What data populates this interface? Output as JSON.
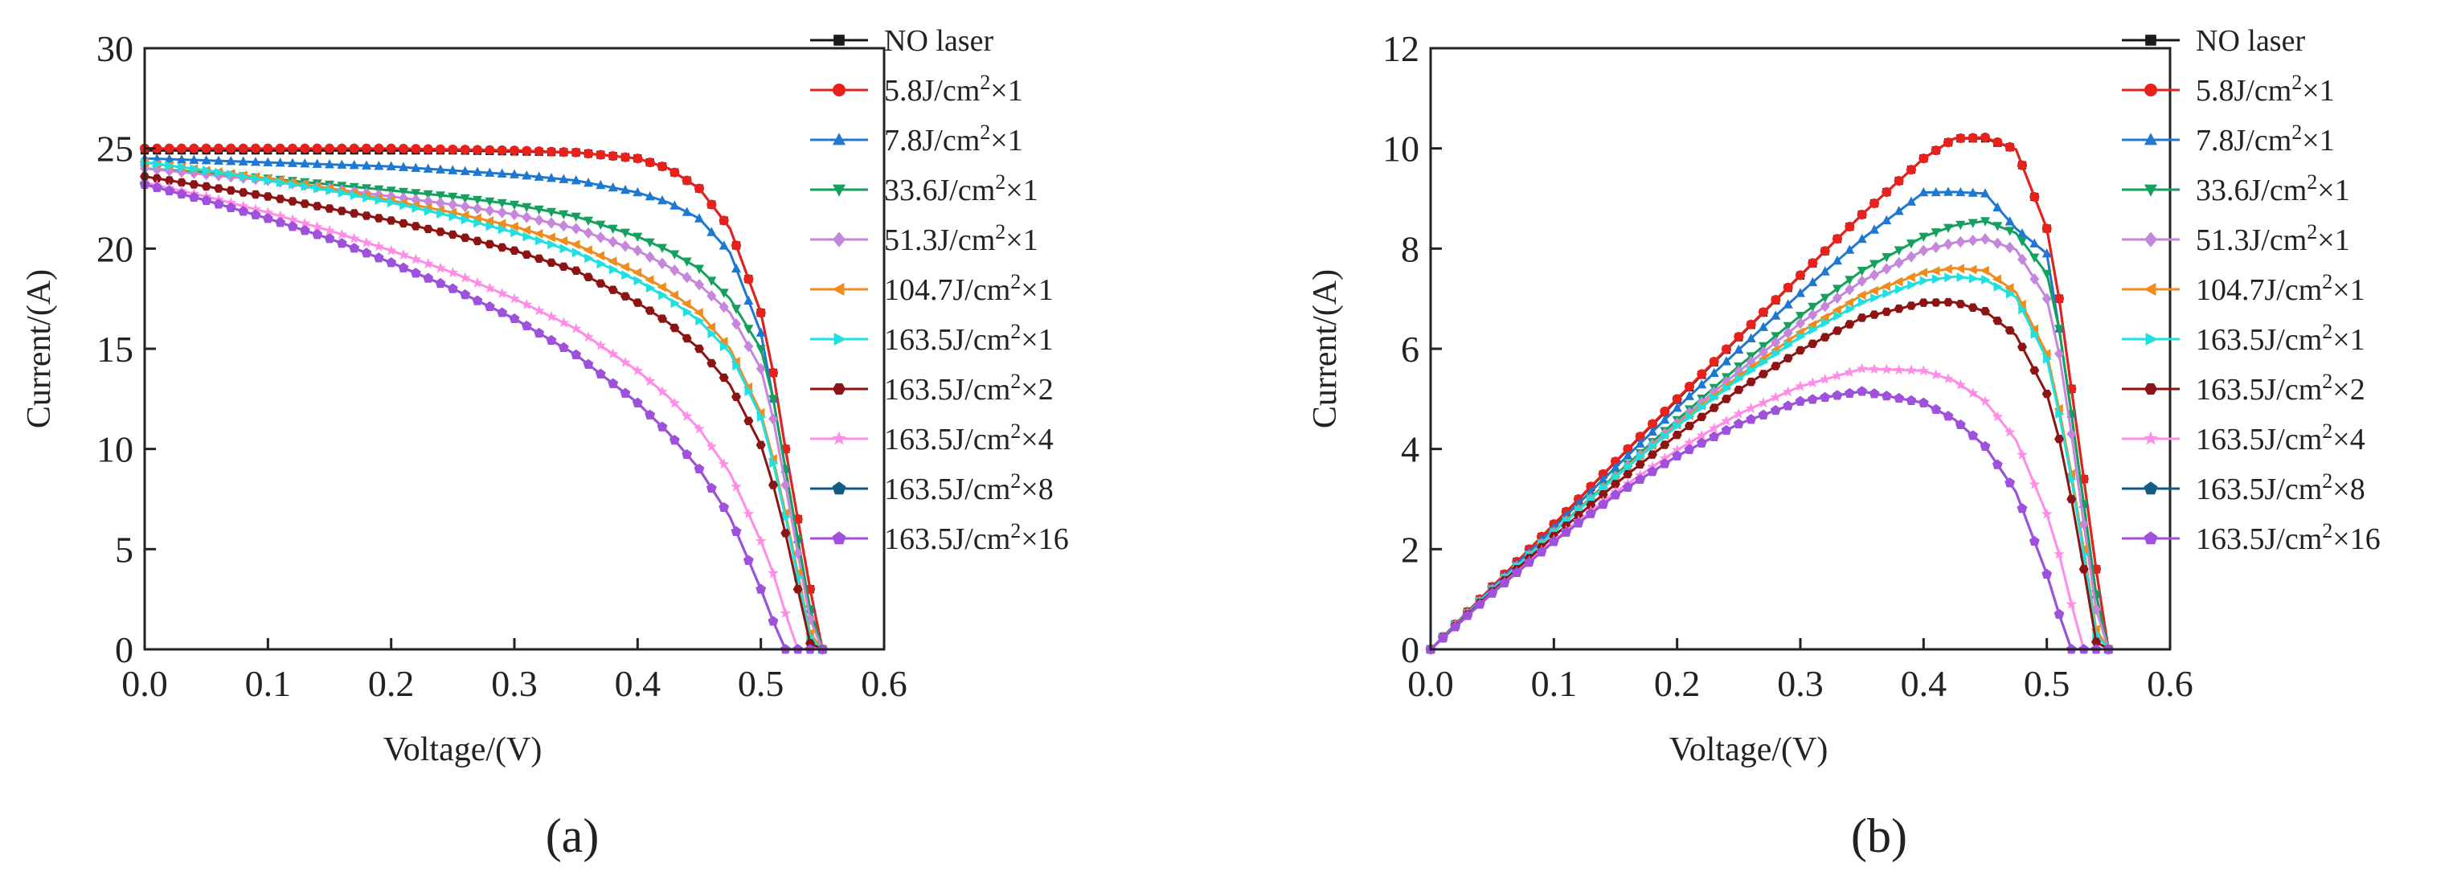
{
  "legend_entries": [
    {
      "base": "NO laser",
      "sup": "",
      "rest": "",
      "color": "#1a1a1a",
      "marker": "square"
    },
    {
      "base": "5.8J/cm",
      "sup": "2",
      "rest": "×1",
      "color": "#e8211d",
      "marker": "circle"
    },
    {
      "base": "7.8J/cm",
      "sup": "2",
      "rest": "×1",
      "color": "#1e78d2",
      "marker": "triangle-up"
    },
    {
      "base": "33.6J/cm",
      "sup": "2",
      "rest": "×1",
      "color": "#16a05e",
      "marker": "triangle-down"
    },
    {
      "base": "51.3J/cm",
      "sup": "2",
      "rest": "×1",
      "color": "#c586dc",
      "marker": "diamond"
    },
    {
      "base": "104.7J/cm",
      "sup": "2",
      "rest": "×1",
      "color": "#f08c1e",
      "marker": "triangle-left"
    },
    {
      "base": "163.5J/cm",
      "sup": "2",
      "rest": "×1",
      "color": "#1ee0e0",
      "marker": "triangle-right"
    },
    {
      "base": "163.5J/cm",
      "sup": "2",
      "rest": "×2",
      "color": "#8c1414",
      "marker": "hexagon"
    },
    {
      "base": "163.5J/cm",
      "sup": "2",
      "rest": "×4",
      "color": "#ff8ce6",
      "marker": "star"
    },
    {
      "base": "163.5J/cm",
      "sup": "2",
      "rest": "×8",
      "color": "#145a82",
      "marker": "pentagon"
    },
    {
      "base": "163.5J/cm",
      "sup": "2",
      "rest": "×16",
      "color": "#a050dc",
      "marker": "pentagon"
    }
  ],
  "chart_data": [
    {
      "type": "line",
      "caption": "(a)",
      "xlabel": "Voltage/(V)",
      "ylabel": "Current/(A)",
      "xlim": [
        0,
        0.6
      ],
      "ylim": [
        0,
        30
      ],
      "xticks": [
        0.0,
        0.1,
        0.2,
        0.3,
        0.4,
        0.5,
        0.6
      ],
      "xtick_labels": [
        "0.0",
        "0.1",
        "0.2",
        "0.3",
        "0.4",
        "0.5",
        "0.6"
      ],
      "yticks": [
        0,
        5,
        10,
        15,
        20,
        25,
        30
      ],
      "ytick_labels": [
        "0",
        "5",
        "10",
        "15",
        "20",
        "25",
        "30"
      ],
      "x": [
        0.0,
        0.05,
        0.1,
        0.15,
        0.2,
        0.25,
        0.3,
        0.35,
        0.4,
        0.425,
        0.45,
        0.475,
        0.5,
        0.51,
        0.52,
        0.53,
        0.54,
        0.55
      ],
      "series": [
        {
          "name": "NO laser",
          "values": [
            24.9,
            24.9,
            24.9,
            24.9,
            24.9,
            24.9,
            24.85,
            24.8,
            24.5,
            24.0,
            23.0,
            21.0,
            16.8,
            13.8,
            10.0,
            6.5,
            3.0,
            0.0
          ]
        },
        {
          "name": "5.8J/cm²×1",
          "values": [
            25.0,
            25.0,
            25.0,
            25.0,
            25.0,
            24.95,
            24.9,
            24.8,
            24.5,
            24.0,
            23.0,
            21.0,
            16.8,
            13.8,
            10.0,
            6.5,
            3.0,
            0.0
          ]
        },
        {
          "name": "7.8J/cm²×1",
          "values": [
            24.5,
            24.4,
            24.3,
            24.2,
            24.1,
            23.9,
            23.7,
            23.4,
            22.8,
            22.3,
            21.5,
            19.8,
            15.8,
            12.5,
            9.0,
            5.5,
            2.0,
            0.0
          ]
        },
        {
          "name": "33.6J/cm²×1",
          "values": [
            24.0,
            23.8,
            23.5,
            23.2,
            22.9,
            22.6,
            22.2,
            21.6,
            20.6,
            19.9,
            19.0,
            17.5,
            15.0,
            12.5,
            9.0,
            5.5,
            2.0,
            0.0
          ]
        },
        {
          "name": "51.3J/cm²×1",
          "values": [
            24.0,
            23.7,
            23.4,
            23.0,
            22.6,
            22.2,
            21.7,
            21.0,
            19.9,
            19.1,
            18.2,
            16.8,
            14.0,
            11.5,
            8.2,
            4.8,
            1.5,
            0.0
          ]
        },
        {
          "name": "104.7J/cm²×1",
          "values": [
            24.3,
            23.9,
            23.5,
            23.0,
            22.4,
            21.8,
            21.1,
            20.2,
            18.8,
            17.9,
            16.8,
            15.0,
            11.8,
            9.5,
            6.8,
            3.8,
            0.8,
            0.0
          ]
        },
        {
          "name": "163.5J/cm²×1",
          "values": [
            24.3,
            23.9,
            23.4,
            22.9,
            22.3,
            21.6,
            20.8,
            19.8,
            18.4,
            17.5,
            16.4,
            14.8,
            11.6,
            9.3,
            6.6,
            3.6,
            0.6,
            0.0
          ]
        },
        {
          "name": "163.5J/cm²×2",
          "values": [
            23.6,
            23.1,
            22.6,
            22.0,
            21.4,
            20.7,
            19.9,
            18.9,
            17.3,
            16.3,
            15.0,
            13.2,
            10.2,
            8.2,
            5.8,
            3.0,
            0.3,
            0.0
          ]
        },
        {
          "name": "163.5J/cm²×4",
          "values": [
            23.3,
            22.6,
            21.8,
            20.9,
            19.9,
            18.8,
            17.5,
            16.0,
            13.9,
            12.6,
            11.0,
            8.8,
            5.4,
            3.8,
            1.8,
            0.0,
            0.0,
            0.0
          ]
        },
        {
          "name": "163.5J/cm²×8",
          "values": [
            23.2,
            22.4,
            21.5,
            20.5,
            19.3,
            18.0,
            16.5,
            14.7,
            12.3,
            10.8,
            9.0,
            6.6,
            3.0,
            1.4,
            0.0,
            0.0,
            0.0,
            0.0
          ]
        },
        {
          "name": "163.5J/cm²×16",
          "values": [
            23.2,
            22.4,
            21.5,
            20.5,
            19.3,
            18.0,
            16.5,
            14.7,
            12.3,
            10.8,
            9.0,
            6.6,
            3.0,
            1.4,
            0.0,
            0.0,
            0.0,
            0.0
          ]
        }
      ]
    },
    {
      "type": "line",
      "caption": "(b)",
      "xlabel": "Voltage/(V)",
      "ylabel": "Current/(A)",
      "xlim": [
        0,
        0.6
      ],
      "ylim": [
        0,
        12
      ],
      "xticks": [
        0.0,
        0.1,
        0.2,
        0.3,
        0.4,
        0.5,
        0.6
      ],
      "xtick_labels": [
        "0.0",
        "0.1",
        "0.2",
        "0.3",
        "0.4",
        "0.5",
        "0.6"
      ],
      "yticks": [
        0,
        2,
        4,
        6,
        8,
        10,
        12
      ],
      "ytick_labels": [
        "0",
        "2",
        "4",
        "6",
        "8",
        "10",
        "12"
      ],
      "x": [
        0.0,
        0.05,
        0.1,
        0.15,
        0.2,
        0.25,
        0.3,
        0.35,
        0.4,
        0.425,
        0.45,
        0.475,
        0.5,
        0.51,
        0.52,
        0.53,
        0.54,
        0.55
      ],
      "series": [
        {
          "name": "NO laser",
          "values": [
            0.0,
            1.25,
            2.49,
            3.74,
            4.98,
            6.23,
            7.46,
            8.68,
            9.8,
            10.2,
            10.2,
            9.98,
            8.4,
            7.0,
            5.2,
            3.4,
            1.6,
            0.0
          ]
        },
        {
          "name": "5.8J/cm²×1",
          "values": [
            0.0,
            1.25,
            2.5,
            3.75,
            5.0,
            6.24,
            7.47,
            8.68,
            9.8,
            10.2,
            10.22,
            9.98,
            8.4,
            7.0,
            5.2,
            3.4,
            1.6,
            0.0
          ]
        },
        {
          "name": "7.8J/cm²×1",
          "values": [
            0.0,
            1.22,
            2.43,
            3.63,
            4.82,
            5.98,
            7.11,
            8.19,
            9.12,
            9.13,
            9.1,
            8.4,
            7.9,
            6.4,
            4.7,
            2.9,
            1.1,
            0.0
          ]
        },
        {
          "name": "33.6J/cm²×1",
          "values": [
            0.0,
            1.19,
            2.35,
            3.48,
            4.58,
            5.65,
            6.66,
            7.56,
            8.24,
            8.46,
            8.55,
            8.31,
            7.5,
            6.4,
            4.7,
            2.9,
            1.1,
            0.0
          ]
        },
        {
          "name": "51.3J/cm²×1",
          "values": [
            0.0,
            1.19,
            2.34,
            3.45,
            4.52,
            5.55,
            6.51,
            7.35,
            7.96,
            8.12,
            8.19,
            7.98,
            7.0,
            5.9,
            4.3,
            2.5,
            0.8,
            0.0
          ]
        },
        {
          "name": "104.7J/cm²×1",
          "values": [
            0.0,
            1.2,
            2.35,
            3.45,
            4.48,
            5.45,
            6.33,
            7.07,
            7.52,
            7.61,
            7.56,
            7.13,
            5.9,
            4.8,
            3.5,
            2.0,
            0.4,
            0.0
          ]
        },
        {
          "name": "163.5J/cm²×1",
          "values": [
            0.0,
            1.2,
            2.34,
            3.44,
            4.46,
            5.4,
            6.24,
            6.93,
            7.36,
            7.44,
            7.38,
            7.03,
            5.8,
            4.7,
            3.4,
            1.9,
            0.3,
            0.0
          ]
        },
        {
          "name": "163.5J/cm²×2",
          "values": [
            0.0,
            1.16,
            2.26,
            3.3,
            4.28,
            5.18,
            5.97,
            6.62,
            6.92,
            6.93,
            6.75,
            6.27,
            5.1,
            4.2,
            3.0,
            1.6,
            0.15,
            0.0
          ]
        },
        {
          "name": "163.5J/cm²×4",
          "values": [
            0.0,
            1.13,
            2.18,
            3.14,
            3.98,
            4.7,
            5.25,
            5.6,
            5.56,
            5.36,
            4.95,
            4.18,
            2.7,
            1.9,
            0.9,
            0.0,
            0.0,
            0.0
          ]
        },
        {
          "name": "163.5J/cm²×8",
          "values": [
            0.0,
            1.12,
            2.15,
            3.08,
            3.86,
            4.5,
            4.95,
            5.15,
            4.92,
            4.59,
            4.05,
            3.14,
            1.5,
            0.7,
            0.0,
            0.0,
            0.0,
            0.0
          ]
        },
        {
          "name": "163.5J/cm²×16",
          "values": [
            0.0,
            1.12,
            2.15,
            3.08,
            3.86,
            4.5,
            4.95,
            5.15,
            4.92,
            4.59,
            4.05,
            3.14,
            1.5,
            0.7,
            0.0,
            0.0,
            0.0,
            0.0
          ]
        }
      ]
    }
  ]
}
